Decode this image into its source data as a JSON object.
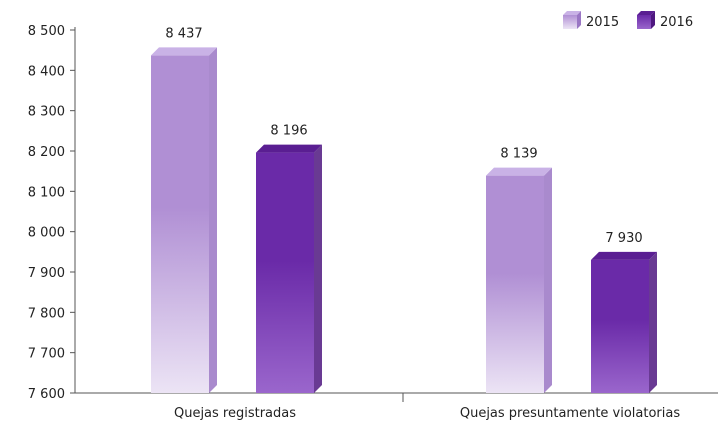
{
  "chart_data": {
    "type": "bar",
    "categories": [
      "Quejas registradas",
      "Quejas presuntamente violatorias"
    ],
    "series": [
      {
        "name": "2015",
        "values": [
          8437,
          8139
        ],
        "color": "#b08fd4",
        "color_light": "#ece4f5",
        "color_top": "#c9b2e6",
        "color_side": "#9a76c4"
      },
      {
        "name": "2016",
        "values": [
          8196,
          7930
        ],
        "color": "#6a2aa8",
        "color_light": "#9a66cc",
        "color_top": "#5a1e92",
        "color_side": "#4f1880"
      }
    ],
    "value_labels": [
      [
        "8 437",
        "8 139"
      ],
      [
        "8 196",
        "7 930"
      ]
    ],
    "ylim": [
      7600,
      8500
    ],
    "yticks": [
      7600,
      7700,
      7800,
      7900,
      8000,
      8100,
      8200,
      8300,
      8400,
      8500
    ],
    "ytick_labels": [
      "7 600",
      "7 700",
      "7 800",
      "7 900",
      "8 000",
      "8 100",
      "8 200",
      "8 300",
      "8 400",
      "8 500"
    ],
    "legend_position": "top-right",
    "grid": false,
    "title": "",
    "xlabel": "",
    "ylabel": ""
  }
}
